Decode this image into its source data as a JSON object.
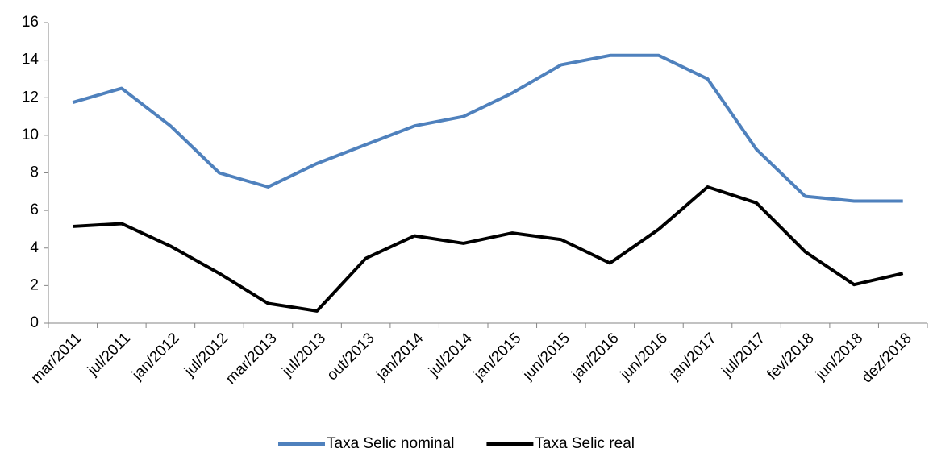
{
  "chart_data": {
    "type": "line",
    "categories": [
      "mar/2011",
      "jul/2011",
      "jan/2012",
      "jul/2012",
      "mar/2013",
      "jul/2013",
      "out/2013",
      "jan/2014",
      "jul/2014",
      "jan/2015",
      "jun/2015",
      "jan/2016",
      "jun/2016",
      "jan/2017",
      "jul/2017",
      "fev/2018",
      "jun/2018",
      "dez/2018"
    ],
    "series": [
      {
        "name": "Taxa Selic nominal",
        "color": "#4f81bd",
        "values": [
          11.75,
          12.5,
          10.5,
          8.0,
          7.25,
          8.5,
          9.5,
          10.5,
          11.0,
          12.25,
          13.75,
          14.25,
          14.25,
          13.0,
          9.25,
          6.75,
          6.5,
          6.5
        ]
      },
      {
        "name": "Taxa Selic real",
        "color": "#000000",
        "values": [
          5.15,
          5.3,
          4.1,
          2.65,
          1.05,
          0.65,
          3.45,
          4.65,
          4.25,
          4.8,
          4.45,
          3.2,
          5.0,
          7.25,
          6.4,
          3.8,
          2.05,
          2.65
        ]
      }
    ],
    "ylim": [
      0,
      16
    ],
    "yticks": [
      0,
      2,
      4,
      6,
      8,
      10,
      12,
      14,
      16
    ],
    "legend": "bottom"
  }
}
